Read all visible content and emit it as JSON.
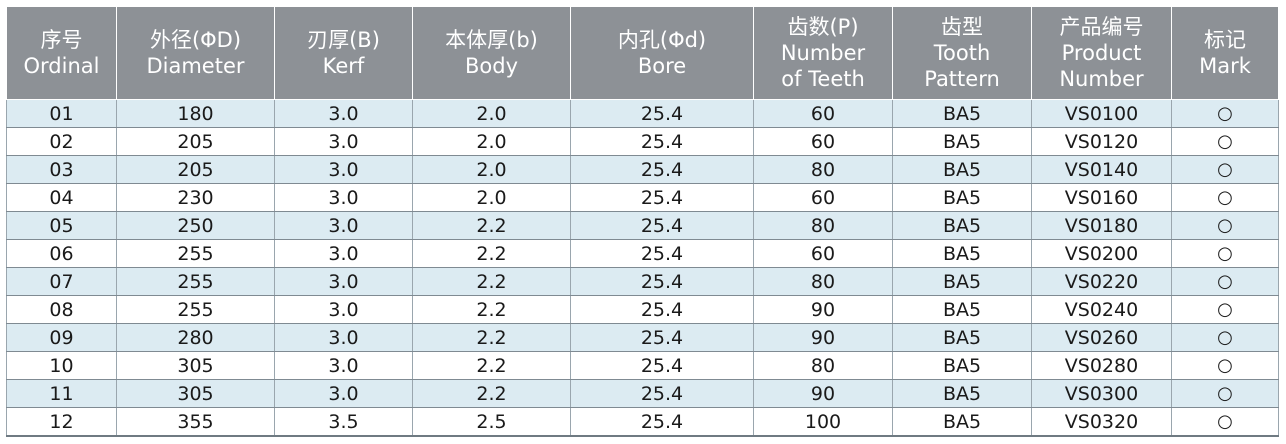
{
  "header": [
    [
      "序号",
      "Ordinal"
    ],
    [
      "外径(ΦD)",
      "Diameter"
    ],
    [
      "刃厚(B)",
      "Kerf"
    ],
    [
      "本体厚(b)",
      "Body"
    ],
    [
      "内孔(Φd)",
      "Bore"
    ],
    [
      "齿数(P)",
      "Number",
      "of Teeth"
    ],
    [
      "齿型",
      "Tooth",
      "Pattern"
    ],
    [
      "产品编号",
      "Product",
      "Number"
    ],
    [
      "标记",
      "Mark"
    ]
  ],
  "rows": [
    [
      "01",
      "180",
      "3.0",
      "2.0",
      "25.4",
      "60",
      "BA5",
      "VS0100",
      "○"
    ],
    [
      "02",
      "205",
      "3.0",
      "2.0",
      "25.4",
      "60",
      "BA5",
      "VS0120",
      "○"
    ],
    [
      "03",
      "205",
      "3.0",
      "2.0",
      "25.4",
      "80",
      "BA5",
      "VS0140",
      "○"
    ],
    [
      "04",
      "230",
      "3.0",
      "2.0",
      "25.4",
      "60",
      "BA5",
      "VS0160",
      "○"
    ],
    [
      "05",
      "250",
      "3.0",
      "2.2",
      "25.4",
      "80",
      "BA5",
      "VS0180",
      "○"
    ],
    [
      "06",
      "255",
      "3.0",
      "2.2",
      "25.4",
      "60",
      "BA5",
      "VS0200",
      "○"
    ],
    [
      "07",
      "255",
      "3.0",
      "2.2",
      "25.4",
      "80",
      "BA5",
      "VS0220",
      "○"
    ],
    [
      "08",
      "255",
      "3.0",
      "2.2",
      "25.4",
      "90",
      "BA5",
      "VS0240",
      "○"
    ],
    [
      "09",
      "280",
      "3.0",
      "2.2",
      "25.4",
      "90",
      "BA5",
      "VS0260",
      "○"
    ],
    [
      "10",
      "305",
      "3.0",
      "2.2",
      "25.4",
      "80",
      "BA5",
      "VS0280",
      "○"
    ],
    [
      "11",
      "305",
      "3.0",
      "2.2",
      "25.4",
      "90",
      "BA5",
      "VS0300",
      "○"
    ],
    [
      "12",
      "355",
      "3.5",
      "2.5",
      "25.4",
      "100",
      "BA5",
      "VS0320",
      "○"
    ]
  ],
  "colors": {
    "header_bg": "#8d9196",
    "row_alt_bg": "#dcebf2",
    "row_bg": "#ffffff"
  }
}
